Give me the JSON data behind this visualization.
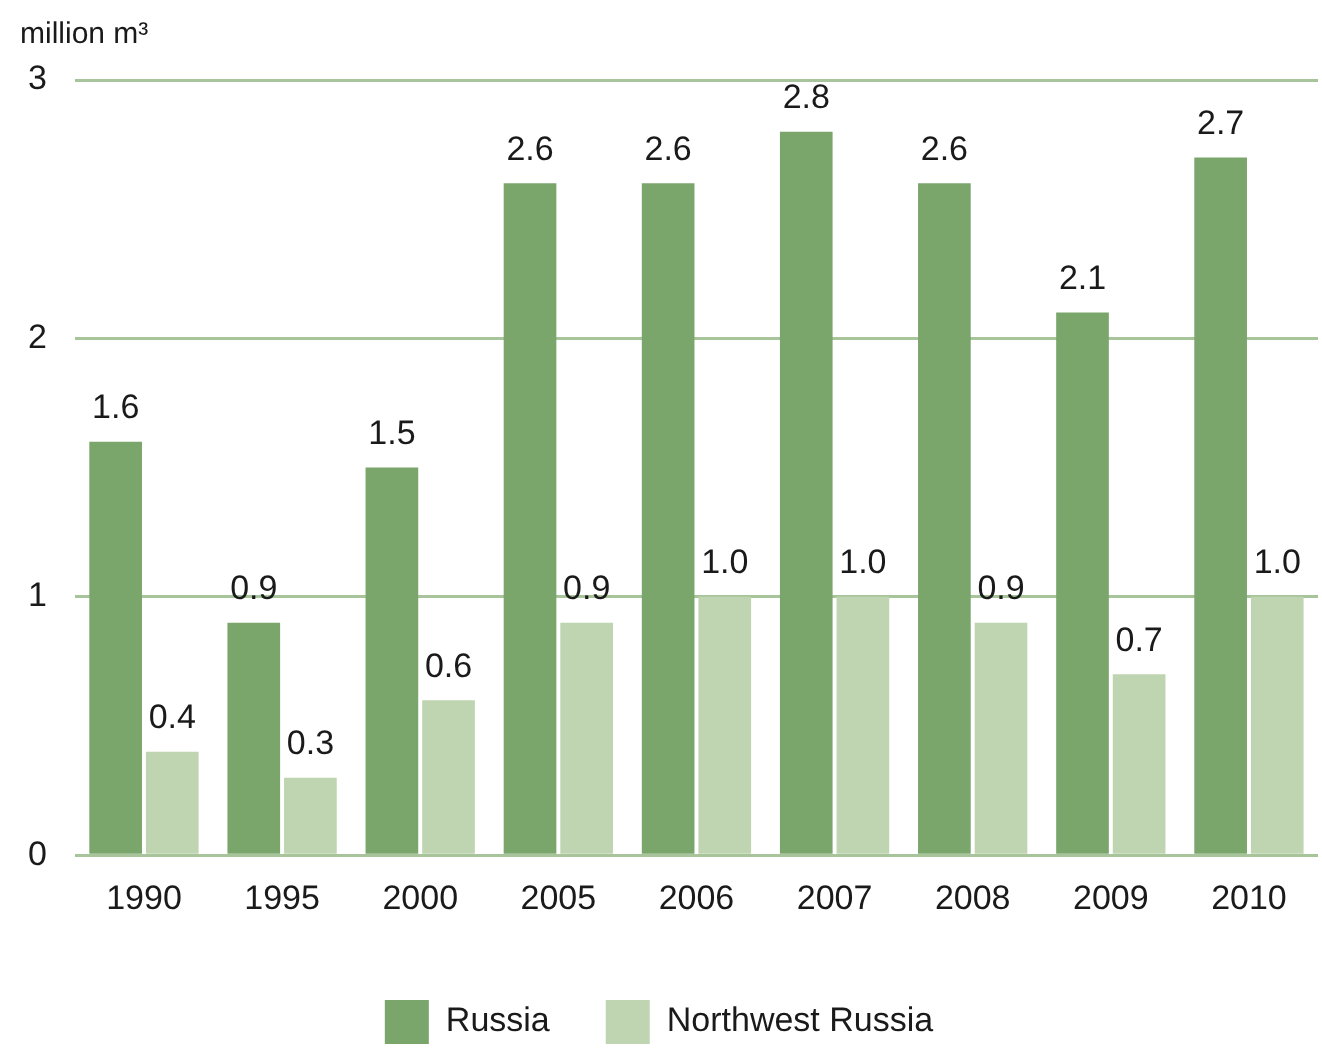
{
  "chart_data": {
    "type": "bar",
    "ylabel": "million m³",
    "categories": [
      "1990",
      "1995",
      "2000",
      "2005",
      "2006",
      "2007",
      "2008",
      "2009",
      "2010"
    ],
    "series": [
      {
        "name": "Russia",
        "color": "#7aa56b",
        "values": [
          1.6,
          0.9,
          1.5,
          2.6,
          2.6,
          2.8,
          2.6,
          2.1,
          2.7
        ],
        "value_labels": [
          "1.6",
          "0.9",
          "1.5",
          "2.6",
          "2.6",
          "2.8",
          "2.6",
          "2.1",
          "2.7"
        ]
      },
      {
        "name": "Northwest Russia",
        "color": "#bfd4b0",
        "values": [
          0.4,
          0.3,
          0.6,
          0.9,
          1.0,
          1.0,
          0.9,
          0.7,
          1.0
        ],
        "value_labels": [
          "0.4",
          "0.3",
          "0.6",
          "0.9",
          "1.0",
          "1.0",
          "0.9",
          "0.7",
          "1.0"
        ]
      }
    ],
    "ylim": [
      0,
      3
    ],
    "yticks": [
      0,
      1,
      2,
      3
    ],
    "grid": "y",
    "legend": "bottom"
  }
}
